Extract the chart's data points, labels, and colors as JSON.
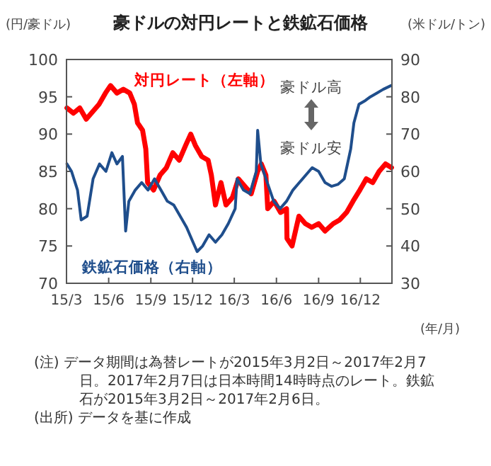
{
  "chart_data": {
    "type": "line",
    "title": "豪ドルの対円レートと鉄鉱石価格",
    "ylabel": "(円/豪ドル)",
    "y2label": "(米ドル/トン)",
    "xlabel": "(年/月)",
    "xlim": [
      "2015-03-01",
      "2017-02-08"
    ],
    "xticks": [
      {
        "value": "2015-03-01",
        "label": "15/3"
      },
      {
        "value": "2015-06-01",
        "label": "15/6"
      },
      {
        "value": "2015-09-01",
        "label": "15/9"
      },
      {
        "value": "2015-12-01",
        "label": "15/12"
      },
      {
        "value": "2016-03-01",
        "label": "16/3"
      },
      {
        "value": "2016-06-01",
        "label": "16/6"
      },
      {
        "value": "2016-09-01",
        "label": "16/9"
      },
      {
        "value": "2016-12-01",
        "label": "16/12"
      }
    ],
    "ylim": [
      70,
      100
    ],
    "yticks": [
      70,
      75,
      80,
      85,
      90,
      95,
      100
    ],
    "y2lim": [
      30,
      90
    ],
    "y2ticks": [
      30,
      40,
      50,
      60,
      70,
      80,
      90
    ],
    "series": [
      {
        "name": "対円レート（左軸）",
        "color": "#ff0000",
        "x": [
          "2015-03-02",
          "2015-03-16",
          "2015-03-30",
          "2015-04-13",
          "2015-04-27",
          "2015-05-11",
          "2015-05-25",
          "2015-06-05",
          "2015-06-19",
          "2015-07-03",
          "2015-07-17",
          "2015-07-27",
          "2015-08-03",
          "2015-08-14",
          "2015-08-21",
          "2015-08-25",
          "2015-09-07",
          "2015-09-21",
          "2015-10-05",
          "2015-10-19",
          "2015-11-02",
          "2015-11-16",
          "2015-11-27",
          "2015-12-07",
          "2015-12-21",
          "2016-01-04",
          "2016-01-11",
          "2016-01-20",
          "2016-02-01",
          "2016-02-12",
          "2016-02-26",
          "2016-03-10",
          "2016-03-24",
          "2016-04-07",
          "2016-04-21",
          "2016-04-29",
          "2016-05-09",
          "2016-05-13",
          "2016-05-27",
          "2016-06-10",
          "2016-06-23",
          "2016-06-24",
          "2016-07-05",
          "2016-07-20",
          "2016-08-03",
          "2016-08-17",
          "2016-09-01",
          "2016-09-15",
          "2016-10-03",
          "2016-10-17",
          "2016-11-01",
          "2016-11-15",
          "2016-11-30",
          "2016-12-14",
          "2016-12-28",
          "2017-01-11",
          "2017-01-25",
          "2017-02-07"
        ],
        "values": [
          93.5,
          92.8,
          93.5,
          92,
          93,
          94,
          95.5,
          96.5,
          95.5,
          96,
          95.5,
          94,
          91.5,
          90.5,
          88,
          83.5,
          82.5,
          84.5,
          85.5,
          87.5,
          86.5,
          88.5,
          90,
          88.5,
          87,
          86.5,
          84.5,
          80.5,
          83.5,
          80.5,
          81.5,
          84,
          83,
          82,
          85,
          86,
          84.5,
          80,
          81,
          79.5,
          80,
          76,
          75,
          79,
          78,
          77.5,
          78,
          77,
          78,
          78.5,
          79.5,
          81,
          82.5,
          84,
          83.5,
          85,
          86,
          85.5
        ]
      },
      {
        "name": "鉄鉱石価格（右軸）",
        "color": "#1f4e8c",
        "axis": "y2",
        "x": [
          "2015-03-02",
          "2015-03-12",
          "2015-03-25",
          "2015-04-02",
          "2015-04-15",
          "2015-04-28",
          "2015-05-12",
          "2015-05-26",
          "2015-06-08",
          "2015-06-19",
          "2015-07-01",
          "2015-07-08",
          "2015-07-15",
          "2015-07-29",
          "2015-08-12",
          "2015-08-26",
          "2015-09-09",
          "2015-09-23",
          "2015-10-07",
          "2015-10-21",
          "2015-11-04",
          "2015-11-18",
          "2015-12-02",
          "2015-12-11",
          "2015-12-23",
          "2016-01-06",
          "2016-01-20",
          "2016-02-03",
          "2016-02-17",
          "2016-03-03",
          "2016-03-07",
          "2016-03-21",
          "2016-04-04",
          "2016-04-18",
          "2016-04-21",
          "2016-04-28",
          "2016-05-12",
          "2016-05-26",
          "2016-06-09",
          "2016-06-23",
          "2016-07-07",
          "2016-07-21",
          "2016-08-04",
          "2016-08-18",
          "2016-09-01",
          "2016-09-15",
          "2016-09-29",
          "2016-10-13",
          "2016-10-27",
          "2016-11-03",
          "2016-11-10",
          "2016-11-17",
          "2016-11-28",
          "2016-12-12",
          "2016-12-23",
          "2017-01-06",
          "2017-01-20",
          "2017-02-06"
        ],
        "values": [
          62,
          60,
          55,
          47,
          48,
          58,
          62,
          60,
          65,
          62,
          64,
          44,
          52,
          55,
          57,
          55,
          58,
          55,
          52,
          51,
          48,
          45,
          41,
          38.5,
          40,
          43,
          41,
          43,
          46,
          50,
          58,
          55,
          54,
          60,
          71,
          62,
          57,
          52,
          50,
          52,
          55,
          57,
          59,
          61,
          60,
          57,
          56,
          56.5,
          58,
          62,
          66,
          73,
          78,
          79,
          80,
          81,
          82,
          83
        ]
      }
    ],
    "annotations": [
      "豪ドル高",
      "豪ドル安",
      "(注) データ期間は為替レートが2015年3月2日～2017年2月7日。2017年2月7日は日本時間14時時点のレート。鉄鉱石が2015年3月2日～2017年2月6日。",
      "(出所) データを基に作成"
    ]
  }
}
